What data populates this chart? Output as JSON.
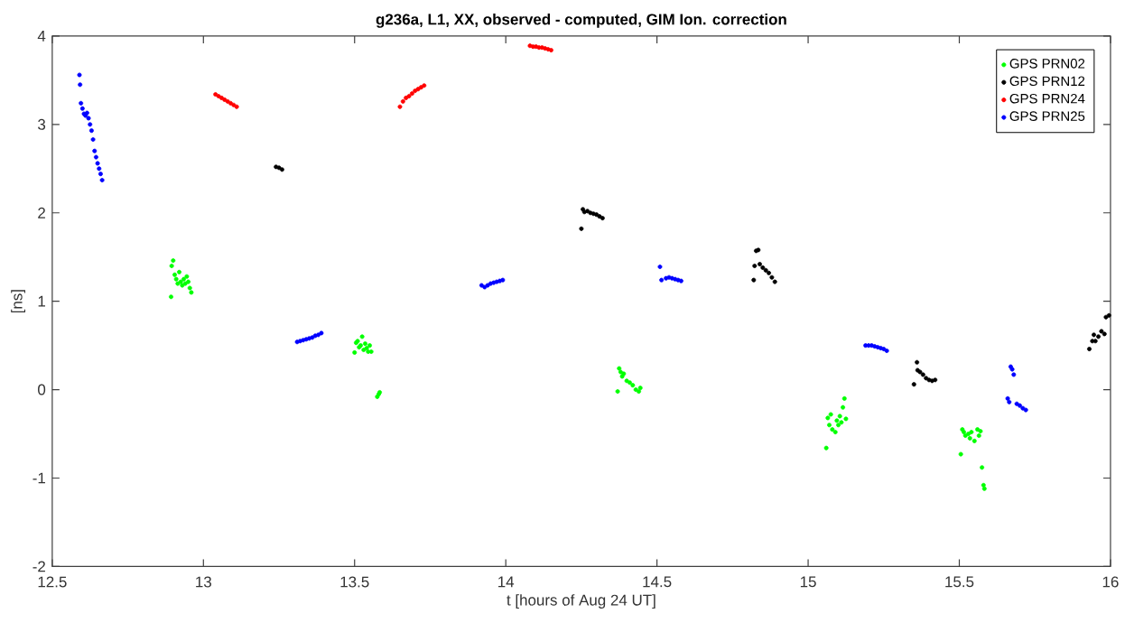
{
  "chart_data": {
    "type": "scatter",
    "title": "g236a, L1, XX, observed - computed, GIM Ion. correction",
    "xlabel": "t [hours of Aug 24 UT]",
    "ylabel": "[ns]",
    "xlim": [
      12.5,
      16
    ],
    "ylim": [
      -2,
      4
    ],
    "xticks": [
      12.5,
      13,
      13.5,
      14,
      14.5,
      15,
      15.5,
      16
    ],
    "yticks": [
      -2,
      -1,
      0,
      1,
      2,
      3,
      4
    ],
    "legend": "top right",
    "marker": "circle",
    "series": [
      {
        "name": "GPS PRN02",
        "color": "#00ff00",
        "x": [
          12.893,
          12.895,
          12.9,
          12.905,
          12.91,
          12.915,
          12.92,
          12.925,
          12.93,
          12.935,
          12.94,
          12.945,
          12.95,
          12.955,
          12.96,
          13.5,
          13.505,
          13.51,
          13.515,
          13.52,
          13.525,
          13.53,
          13.535,
          13.54,
          13.545,
          13.55,
          13.555,
          13.575,
          13.58,
          13.583,
          14.37,
          14.375,
          14.38,
          14.385,
          14.39,
          14.4,
          14.41,
          14.42,
          14.43,
          14.44,
          14.445,
          15.06,
          15.065,
          15.07,
          15.075,
          15.08,
          15.09,
          15.095,
          15.1,
          15.105,
          15.11,
          15.115,
          15.12,
          15.125,
          15.505,
          15.51,
          15.515,
          15.52,
          15.53,
          15.535,
          15.54,
          15.55,
          15.56,
          15.565,
          15.57,
          15.575,
          15.58,
          15.583
        ],
        "values": [
          1.05,
          1.4,
          1.46,
          1.3,
          1.25,
          1.2,
          1.33,
          1.22,
          1.18,
          1.25,
          1.2,
          1.28,
          1.22,
          1.15,
          1.1,
          0.42,
          0.53,
          0.55,
          0.48,
          0.5,
          0.6,
          0.45,
          0.52,
          0.47,
          0.43,
          0.5,
          0.43,
          -0.08,
          -0.05,
          -0.03,
          -0.02,
          0.24,
          0.2,
          0.15,
          0.18,
          0.1,
          0.08,
          0.05,
          0.0,
          -0.02,
          0.02,
          -0.66,
          -0.32,
          -0.4,
          -0.28,
          -0.45,
          -0.48,
          -0.35,
          -0.4,
          -0.3,
          -0.37,
          -0.2,
          -0.1,
          -0.33,
          -0.73,
          -0.45,
          -0.48,
          -0.52,
          -0.5,
          -0.55,
          -0.48,
          -0.58,
          -0.45,
          -0.52,
          -0.47,
          -0.88,
          -1.08,
          -1.12
        ]
      },
      {
        "name": "GPS PRN12",
        "color": "#000000",
        "x": [
          13.24,
          13.25,
          13.26,
          14.25,
          14.255,
          14.26,
          14.27,
          14.28,
          14.29,
          14.3,
          14.31,
          14.32,
          14.82,
          14.823,
          14.828,
          14.835,
          14.84,
          14.85,
          14.86,
          14.87,
          14.88,
          14.89,
          15.35,
          15.36,
          15.362,
          15.37,
          15.38,
          15.39,
          15.4,
          15.41,
          15.42,
          15.93,
          15.94,
          15.945,
          15.95,
          15.96,
          15.97,
          15.98,
          15.985,
          15.995
        ],
        "values": [
          2.52,
          2.51,
          2.49,
          1.82,
          2.04,
          2.01,
          2.02,
          2.0,
          1.99,
          1.98,
          1.96,
          1.94,
          1.24,
          1.4,
          1.57,
          1.58,
          1.42,
          1.38,
          1.35,
          1.32,
          1.27,
          1.22,
          0.06,
          0.31,
          0.22,
          0.2,
          0.17,
          0.13,
          0.11,
          0.1,
          0.11,
          0.46,
          0.55,
          0.62,
          0.55,
          0.6,
          0.66,
          0.63,
          0.82,
          0.84
        ]
      },
      {
        "name": "GPS PRN24",
        "color": "#ff0000",
        "x": [
          13.04,
          13.05,
          13.06,
          13.07,
          13.08,
          13.09,
          13.1,
          13.11,
          13.65,
          13.66,
          13.67,
          13.68,
          13.69,
          13.7,
          13.71,
          13.72,
          13.73,
          14.08,
          14.09,
          14.1,
          14.11,
          14.12,
          14.13,
          14.14,
          14.15
        ],
        "values": [
          3.34,
          3.32,
          3.3,
          3.28,
          3.26,
          3.24,
          3.22,
          3.2,
          3.2,
          3.26,
          3.3,
          3.32,
          3.35,
          3.38,
          3.4,
          3.42,
          3.44,
          3.89,
          3.88,
          3.88,
          3.87,
          3.87,
          3.86,
          3.85,
          3.84
        ]
      },
      {
        "name": "GPS PRN25",
        "color": "#0000ff",
        "x": [
          12.59,
          12.592,
          12.595,
          12.6,
          12.605,
          12.61,
          12.615,
          12.62,
          12.625,
          12.63,
          12.635,
          12.64,
          12.645,
          12.65,
          12.655,
          12.66,
          12.665,
          13.31,
          13.32,
          13.33,
          13.34,
          13.35,
          13.36,
          13.37,
          13.38,
          13.39,
          13.92,
          13.93,
          13.94,
          13.95,
          13.96,
          13.97,
          13.98,
          13.99,
          14.51,
          14.515,
          14.53,
          14.54,
          14.55,
          14.56,
          14.57,
          14.58,
          15.19,
          15.2,
          15.21,
          15.22,
          15.23,
          15.24,
          15.25,
          15.26,
          15.66,
          15.665,
          15.67,
          15.675,
          15.68,
          15.69,
          15.7,
          15.71,
          15.72
        ],
        "values": [
          3.56,
          3.45,
          3.24,
          3.18,
          3.12,
          3.1,
          3.13,
          3.07,
          3.0,
          2.93,
          2.83,
          2.7,
          2.63,
          2.56,
          2.5,
          2.44,
          2.37,
          0.54,
          0.55,
          0.56,
          0.57,
          0.58,
          0.59,
          0.61,
          0.62,
          0.64,
          1.18,
          1.16,
          1.18,
          1.2,
          1.21,
          1.22,
          1.23,
          1.24,
          1.39,
          1.24,
          1.26,
          1.27,
          1.26,
          1.25,
          1.24,
          1.23,
          0.5,
          0.5,
          0.5,
          0.49,
          0.48,
          0.47,
          0.46,
          0.44,
          -0.1,
          -0.14,
          0.26,
          0.23,
          0.17,
          -0.16,
          -0.18,
          -0.21,
          -0.23
        ]
      }
    ]
  }
}
